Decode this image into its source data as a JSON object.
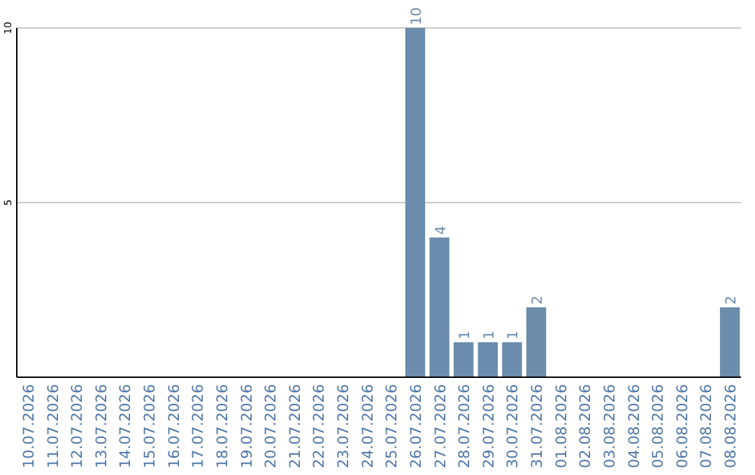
{
  "chart_data": {
    "type": "bar",
    "categories": [
      "10.07.2026",
      "11.07.2026",
      "12.07.2026",
      "13.07.2026",
      "14.07.2026",
      "15.07.2026",
      "16.07.2026",
      "17.07.2026",
      "18.07.2026",
      "19.07.2026",
      "20.07.2026",
      "21.07.2026",
      "22.07.2026",
      "23.07.2026",
      "24.07.2026",
      "25.07.2026",
      "26.07.2026",
      "27.07.2026",
      "28.07.2026",
      "29.07.2026",
      "30.07.2026",
      "31.07.2026",
      "01.08.2026",
      "02.08.2026",
      "03.08.2026",
      "04.08.2026",
      "05.08.2026",
      "06.08.2026",
      "07.08.2026",
      "08.08.2026"
    ],
    "values": [
      0,
      0,
      0,
      0,
      0,
      0,
      0,
      0,
      0,
      0,
      0,
      0,
      0,
      0,
      0,
      0,
      10,
      4,
      1,
      1,
      1,
      2,
      0,
      0,
      0,
      0,
      0,
      0,
      0,
      2
    ],
    "value_labels": [
      null,
      null,
      null,
      null,
      null,
      null,
      null,
      null,
      null,
      null,
      null,
      null,
      null,
      null,
      null,
      null,
      "10",
      "4",
      "1",
      "1",
      "1",
      "2",
      null,
      null,
      null,
      null,
      null,
      null,
      null,
      "2"
    ],
    "color": "#6b8cab",
    "ylim": [
      0,
      10
    ],
    "yticks": [
      5,
      10
    ],
    "grid": "y"
  }
}
